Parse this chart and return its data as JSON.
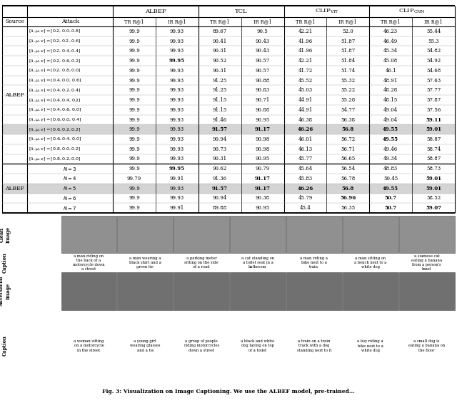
{
  "rows_albef": [
    {
      "attack": "$[\\lambda, \\mu, \\nu] = [0.2, 0.0, 0.8]$",
      "vals": [
        "99.9",
        "99.93",
        "89.67",
        "90.5",
        "42.21",
        "52.0",
        "46.23",
        "55.44"
      ],
      "bold": []
    },
    {
      "attack": "$[\\lambda, \\mu, \\nu] = [0.2, 0.2, 0.6]$",
      "vals": [
        "99.9",
        "99.93",
        "90.41",
        "90.43",
        "41.96",
        "51.87",
        "46.49",
        "55.3"
      ],
      "bold": []
    },
    {
      "attack": "$[\\lambda, \\mu, \\nu] = [0.2, 0.4, 0.4]$",
      "vals": [
        "99.9",
        "99.93",
        "90.31",
        "90.43",
        "41.96",
        "51.87",
        "45.34",
        "54.82"
      ],
      "bold": []
    },
    {
      "attack": "$[\\lambda, \\mu, \\nu] = [0.2, 0.6, 0.2]$",
      "vals": [
        "99.9",
        "99.95",
        "90.52",
        "90.57",
        "42.21",
        "51.84",
        "45.08",
        "54.92"
      ],
      "bold": [
        1
      ]
    },
    {
      "attack": "$[\\lambda, \\mu, \\nu] = [0.2, 0.8, 0.0]$",
      "vals": [
        "99.9",
        "99.93",
        "90.31",
        "90.57",
        "41.72",
        "51.74",
        "46.1",
        "54.68"
      ],
      "bold": []
    },
    {
      "attack": "$[\\lambda, \\mu, \\nu] = [0.4, 0.0, 0.6]$",
      "vals": [
        "99.9",
        "99.93",
        "91.25",
        "90.88",
        "45.52",
        "55.32",
        "48.91",
        "57.63"
      ],
      "bold": []
    },
    {
      "attack": "$[\\lambda, \\mu, \\nu] = [0.4, 0.2, 0.4]$",
      "vals": [
        "99.9",
        "99.93",
        "91.25",
        "90.83",
        "45.03",
        "55.22",
        "48.28",
        "57.77"
      ],
      "bold": []
    },
    {
      "attack": "$[\\lambda, \\mu, \\nu] = [0.4, 0.4, 0.2]$",
      "vals": [
        "99.9",
        "99.93",
        "91.15",
        "90.71",
        "44.91",
        "55.28",
        "48.15",
        "57.87"
      ],
      "bold": []
    },
    {
      "attack": "$[\\lambda, \\mu, \\nu] = [0.4, 0.6, 0.0]$",
      "vals": [
        "99.9",
        "99.93",
        "91.15",
        "90.88",
        "44.91",
        "54.77",
        "49.04",
        "57.56"
      ],
      "bold": []
    },
    {
      "attack": "$[\\lambda, \\mu, \\nu] = [0.6, 0.0, 0.4]$",
      "vals": [
        "99.9",
        "99.93",
        "91.46",
        "90.95",
        "46.38",
        "56.38",
        "49.04",
        "59.11"
      ],
      "bold": [
        7
      ]
    },
    {
      "attack": "$[\\lambda, \\mu, \\nu] = [0.6, 0.2, 0.2]$",
      "vals": [
        "99.9",
        "99.93",
        "91.57",
        "91.17",
        "46.26",
        "56.8",
        "49.55",
        "59.01"
      ],
      "bold": [
        2,
        3,
        4,
        5,
        6,
        7
      ],
      "highlight": true
    },
    {
      "attack": "$[\\lambda, \\mu, \\nu] = [0.6, 0.4, 0.0]$",
      "vals": [
        "99.9",
        "99.93",
        "90.94",
        "90.98",
        "46.01",
        "56.72",
        "49.55",
        "58.87"
      ],
      "bold": [
        6
      ]
    },
    {
      "attack": "$[\\lambda, \\mu, \\nu] = [0.8, 0.0, 0.2]$",
      "vals": [
        "99.9",
        "99.93",
        "90.73",
        "90.98",
        "46.13",
        "56.71",
        "49.46",
        "58.74"
      ],
      "bold": []
    },
    {
      "attack": "$[\\lambda, \\mu, \\nu] = [0.8, 0.2, 0.0]$",
      "vals": [
        "99.9",
        "99.93",
        "90.31",
        "90.95",
        "45.77",
        "56.65",
        "49.34",
        "58.87"
      ],
      "bold": []
    }
  ],
  "rows_n": [
    {
      "attack": "$N = 3$",
      "vals": [
        "99.9",
        "99.95",
        "90.62",
        "90.79",
        "45.64",
        "56.54",
        "48.83",
        "58.73"
      ],
      "bold": [
        1
      ]
    },
    {
      "attack": "$N = 4$",
      "vals": [
        "99.79",
        "99.91",
        "91.36",
        "91.17",
        "45.83",
        "56.78",
        "50.45",
        "59.01"
      ],
      "bold": [
        3,
        7
      ]
    },
    {
      "attack": "$N = 5$",
      "vals": [
        "99.9",
        "99.93",
        "91.57",
        "91.17",
        "46.26",
        "56.8",
        "49.55",
        "59.01"
      ],
      "bold": [
        2,
        3,
        4,
        5,
        6,
        7
      ],
      "highlight": true
    },
    {
      "attack": "$N = 6$",
      "vals": [
        "99.9",
        "99.93",
        "90.94",
        "90.38",
        "45.79",
        "56.96",
        "50.7",
        "58.52"
      ],
      "bold": [
        5,
        6
      ]
    },
    {
      "attack": "$N = 7$",
      "vals": [
        "99.9",
        "99.91",
        "89.88",
        "90.95",
        "45.4",
        "56.35",
        "50.7",
        "59.07"
      ],
      "bold": [
        6,
        7
      ]
    }
  ],
  "clean_captions": [
    "a man riding on\nthe back of a\nmotorcycle down\na street",
    "a man wearing a\nblack shirt and a\ngreen tie",
    "a parking meter\nsitting on the side\nof a road",
    "a cat standing on\na toilet seat in a\nbathroom",
    "a man riding a\nbike next to a\ntrain",
    "a man sitting on\na bench next to a\nwhite dog",
    "a siamese cat\neating a banana\nfrom a person's\nhand"
  ],
  "adv_captions": [
    "a woman sitting\non a motorcycle\nin the street",
    "a young girl\nwearing glasses\nand a tie",
    "a group of people\nriding motorcycles\ndown a street",
    "a black and white\ndog laying on top\nof a toilet",
    "a train on a train\ntrack with a dog\nstanding next to it",
    "a boy riding a\nbike next to a\nwhite dog",
    "a small dog is\neating a banana on\nthe floor"
  ],
  "highlight_color": "#d4d4d4",
  "fig_caption": "Fig. 3: Visualization on Image Captioning. We use the ALBEF model, pre-trained..."
}
